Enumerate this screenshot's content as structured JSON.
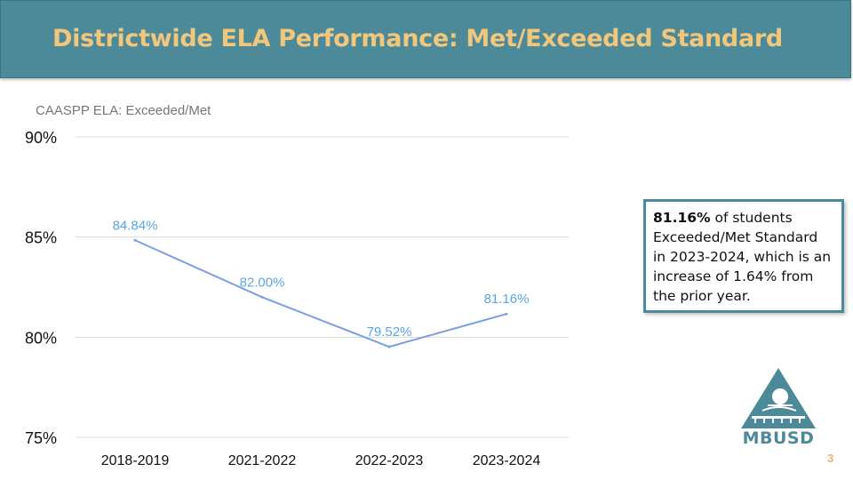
{
  "slide": {
    "title": "Districtwide ELA Performance: Met/Exceeded Standard",
    "page_number": "3"
  },
  "callout": {
    "bold_value": "81.16%",
    "text": " of students Exceeded/Met Standard in 2023-2024, which is an increase of 1.64% from the prior year."
  },
  "logo": {
    "text": "MBUSD",
    "icon": "mbusd-triangle-logo-icon"
  },
  "colors": {
    "header_bg": "#4d8a99",
    "title_text": "#f2c77c",
    "line": "#7b9fe0",
    "data_label": "#5aa6e6"
  },
  "chart_data": {
    "type": "line",
    "title": "CAASPP ELA: Exceeded/Met",
    "categories": [
      "2018-2019",
      "2021-2022",
      "2022-2023",
      "2023-2024"
    ],
    "series": [
      {
        "values": [
          84.84,
          82.0,
          79.52,
          81.16
        ],
        "labels": [
          "84.84%",
          "82.00%",
          "79.52%",
          "81.16%"
        ]
      }
    ],
    "y_ticks": [
      "90%",
      "85%",
      "80%",
      "75%"
    ],
    "y_tick_values": [
      90,
      85,
      80,
      75
    ],
    "ylim": [
      75,
      90
    ],
    "grid": true,
    "legend": "none"
  }
}
